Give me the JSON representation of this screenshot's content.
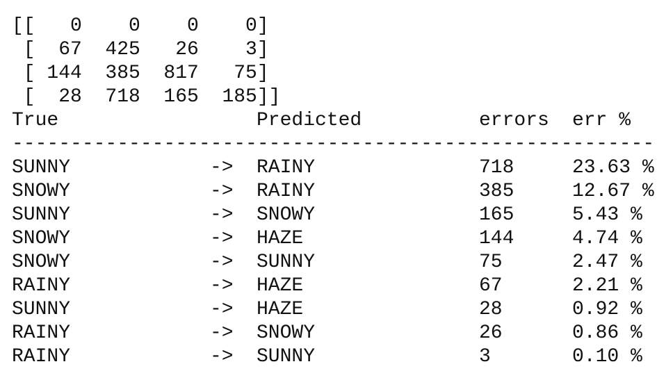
{
  "matrix": {
    "lines": [
      "[[   0    0    0    0]",
      " [  67  425   26    3]",
      " [ 144  385  817   75]",
      " [  28  718  165  185]]"
    ]
  },
  "table": {
    "headers": {
      "true": "True",
      "predicted": "Predicted",
      "errors": "errors",
      "err_pct": "err %"
    },
    "rule": "----------------------------------------------------------------",
    "rows": [
      {
        "true": "SUNNY",
        "arrow": "->",
        "predicted": "RAINY",
        "errors": "718",
        "err_pct": "23.63 %"
      },
      {
        "true": "SNOWY",
        "arrow": "->",
        "predicted": "RAINY",
        "errors": "385",
        "err_pct": "12.67 %"
      },
      {
        "true": "SUNNY",
        "arrow": "->",
        "predicted": "SNOWY",
        "errors": "165",
        "err_pct": "5.43 %"
      },
      {
        "true": "SNOWY",
        "arrow": "->",
        "predicted": "HAZE",
        "errors": "144",
        "err_pct": "4.74 %"
      },
      {
        "true": "SNOWY",
        "arrow": "->",
        "predicted": "SUNNY",
        "errors": "75",
        "err_pct": "2.47 %"
      },
      {
        "true": "RAINY",
        "arrow": "->",
        "predicted": "HAZE",
        "errors": "67",
        "err_pct": "2.21 %"
      },
      {
        "true": "SUNNY",
        "arrow": "->",
        "predicted": "HAZE",
        "errors": "28",
        "err_pct": "0.92 %"
      },
      {
        "true": "RAINY",
        "arrow": "->",
        "predicted": "SNOWY",
        "errors": "26",
        "err_pct": "0.86 %"
      },
      {
        "true": "RAINY",
        "arrow": "->",
        "predicted": "SUNNY",
        "errors": "3",
        "err_pct": "0.10 %"
      }
    ]
  }
}
